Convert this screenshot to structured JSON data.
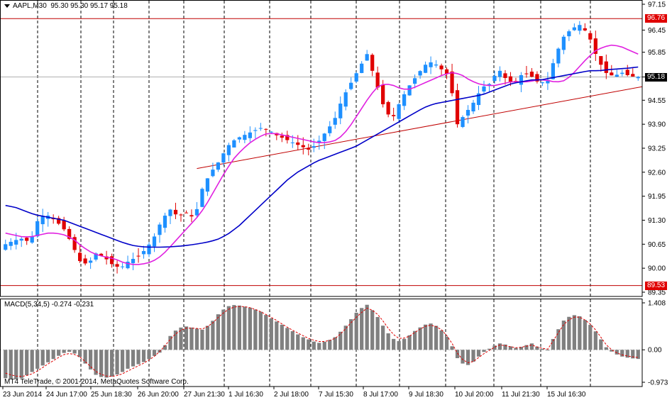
{
  "header": {
    "symbol": "AAPL,M30",
    "ohlc": "95.30 95.30 95.17 95.18"
  },
  "macd": {
    "label": "MACD(5,34,5) -0.274 -0.231",
    "axis_top": "1.408",
    "axis_zero": "0.00",
    "axis_bottom": "-0.973"
  },
  "copyright": "MT4 TeleTrade, © 2001-2014, MetaQuotes Software Corp.",
  "colors": {
    "bull": "#1E90FF",
    "bear": "#E00000",
    "fast_ma": "#E020E0",
    "slow_ma": "#0000C8",
    "trend": "#C00000",
    "hist": "#808080",
    "signal": "#E00000"
  },
  "chart_data": {
    "type": "candlestick",
    "symbol": "AAPL",
    "timeframe": "M30",
    "y_axis_labels": [
      "97.15",
      "96.45",
      "95.85",
      "95.18",
      "94.55",
      "93.90",
      "93.25",
      "92.60",
      "91.95",
      "91.30",
      "90.65",
      "90.00",
      "89.35"
    ],
    "y_range": [
      89.35,
      97.15
    ],
    "price_tags": [
      {
        "label": "96.76",
        "value": 96.76,
        "color": "#E00000"
      },
      {
        "label": "95.18",
        "value": 95.18,
        "color": "#000000"
      },
      {
        "label": "89.53",
        "value": 89.53,
        "color": "#E00000"
      }
    ],
    "x_labels": [
      "23 Jun 2014",
      "24 Jun 17:00",
      "25 Jun 18:30",
      "26 Jun 20:00",
      "27 Jun 21:30",
      "1 Jul 16:30",
      "2 Jul 18:00",
      "7 Jul 15:30",
      "8 Jul 17:00",
      "9 Jul 18:30",
      "10 Jul 20:00",
      "11 Jul 21:30",
      "15 Jul 16:30"
    ],
    "close_path": [
      90.65,
      90.75,
      90.8,
      90.7,
      91.35,
      91.45,
      91.3,
      91.1,
      90.7,
      90.2,
      90.1,
      90.4,
      90.3,
      90.1,
      90.0,
      90.2,
      90.3,
      90.5,
      90.8,
      91.3,
      91.6,
      91.4,
      91.5,
      91.35,
      92.2,
      92.6,
      92.9,
      93.3,
      93.5,
      93.6,
      93.7,
      93.8,
      93.75,
      93.6,
      93.5,
      93.4,
      93.3,
      93.2,
      93.4,
      93.7,
      94.0,
      94.6,
      95.0,
      95.4,
      95.8,
      95.1,
      94.4,
      94.0,
      94.5,
      94.9,
      95.2,
      95.5,
      95.6,
      95.4,
      95.2,
      93.9,
      94.2,
      94.5,
      94.9,
      95.0,
      95.4,
      95.1,
      95.0,
      95.3,
      95.2,
      95.0,
      95.1,
      95.8,
      96.3,
      96.5,
      96.6,
      96.3,
      95.7,
      95.3,
      95.2,
      95.3,
      95.2,
      95.18
    ],
    "ma_fast_path": [
      90.95,
      90.9,
      90.85,
      90.85,
      90.9,
      90.95,
      90.95,
      90.9,
      90.8,
      90.6,
      90.45,
      90.35,
      90.3,
      90.25,
      90.15,
      90.1,
      90.1,
      90.15,
      90.25,
      90.45,
      90.7,
      90.95,
      91.2,
      91.45,
      91.8,
      92.2,
      92.6,
      92.95,
      93.2,
      93.4,
      93.55,
      93.65,
      93.65,
      93.6,
      93.55,
      93.5,
      93.45,
      93.4,
      93.4,
      93.45,
      93.6,
      93.9,
      94.25,
      94.6,
      94.9,
      95.0,
      94.95,
      94.85,
      94.85,
      94.95,
      95.05,
      95.15,
      95.25,
      95.3,
      95.25,
      95.1,
      95.0,
      94.95,
      94.95,
      95.0,
      95.05,
      95.05,
      95.05,
      95.1,
      95.1,
      95.05,
      95.05,
      95.2,
      95.45,
      95.7,
      95.9,
      96.0,
      96.05,
      96.0,
      95.9,
      95.8
    ],
    "ma_slow_path": [
      91.7,
      91.65,
      91.55,
      91.45,
      91.4,
      91.35,
      91.3,
      91.2,
      91.1,
      91.0,
      90.9,
      90.8,
      90.7,
      90.62,
      90.58,
      90.57,
      90.57,
      90.58,
      90.6,
      90.63,
      90.67,
      90.72,
      90.8,
      90.95,
      91.15,
      91.4,
      91.65,
      91.9,
      92.15,
      92.4,
      92.6,
      92.75,
      92.9,
      93.0,
      93.1,
      93.2,
      93.3,
      93.45,
      93.6,
      93.75,
      93.9,
      94.05,
      94.2,
      94.35,
      94.45,
      94.5,
      94.55,
      94.6,
      94.65,
      94.7,
      94.8,
      94.9,
      95.0,
      95.05,
      95.1,
      95.1,
      95.15,
      95.2,
      95.25,
      95.3,
      95.35,
      95.35,
      95.38,
      95.4,
      95.42,
      95.45
    ],
    "trendline": [
      {
        "bar": 36,
        "value": 92.7
      },
      {
        "bar": 104,
        "value": 94.5
      }
    ],
    "h_lines": [
      96.76,
      89.53
    ],
    "macd_range": [
      -0.973,
      1.408
    ],
    "macd_hist": [
      -0.85,
      -0.9,
      -0.85,
      -0.7,
      -0.55,
      -0.4,
      -0.25,
      -0.1,
      -0.05,
      -0.2,
      -0.5,
      -0.75,
      -0.85,
      -0.8,
      -0.7,
      -0.55,
      -0.45,
      -0.35,
      -0.2,
      -0.05,
      0.4,
      0.65,
      0.7,
      0.65,
      0.6,
      0.8,
      1.1,
      1.3,
      1.35,
      1.3,
      1.25,
      1.15,
      1.0,
      0.85,
      0.7,
      0.55,
      0.4,
      0.3,
      0.2,
      0.25,
      0.35,
      0.6,
      0.9,
      1.2,
      1.35,
      1.1,
      0.7,
      0.35,
      0.25,
      0.4,
      0.6,
      0.75,
      0.8,
      0.6,
      0.3,
      -0.25,
      -0.5,
      -0.35,
      -0.1,
      0.05,
      0.2,
      0.15,
      0.05,
      0.1,
      0.2,
      0.05,
      0.0,
      0.5,
      0.9,
      1.05,
      1.0,
      0.8,
      0.5,
      0.1,
      -0.1,
      -0.2,
      -0.25,
      -0.274
    ],
    "macd_signal": [
      -0.7,
      -0.78,
      -0.8,
      -0.75,
      -0.62,
      -0.45,
      -0.3,
      -0.15,
      -0.1,
      -0.2,
      -0.42,
      -0.65,
      -0.78,
      -0.8,
      -0.75,
      -0.62,
      -0.5,
      -0.38,
      -0.22,
      0.0,
      0.3,
      0.55,
      0.65,
      0.65,
      0.62,
      0.75,
      1.0,
      1.2,
      1.3,
      1.3,
      1.25,
      1.15,
      1.02,
      0.88,
      0.72,
      0.58,
      0.45,
      0.33,
      0.25,
      0.25,
      0.32,
      0.52,
      0.8,
      1.05,
      1.25,
      1.15,
      0.85,
      0.5,
      0.32,
      0.38,
      0.55,
      0.7,
      0.75,
      0.62,
      0.35,
      -0.1,
      -0.4,
      -0.35,
      -0.15,
      0.0,
      0.15,
      0.12,
      0.06,
      0.08,
      0.15,
      0.06,
      0.02,
      0.4,
      0.78,
      0.98,
      0.98,
      0.82,
      0.55,
      0.18,
      -0.05,
      -0.15,
      -0.2,
      -0.231
    ]
  }
}
